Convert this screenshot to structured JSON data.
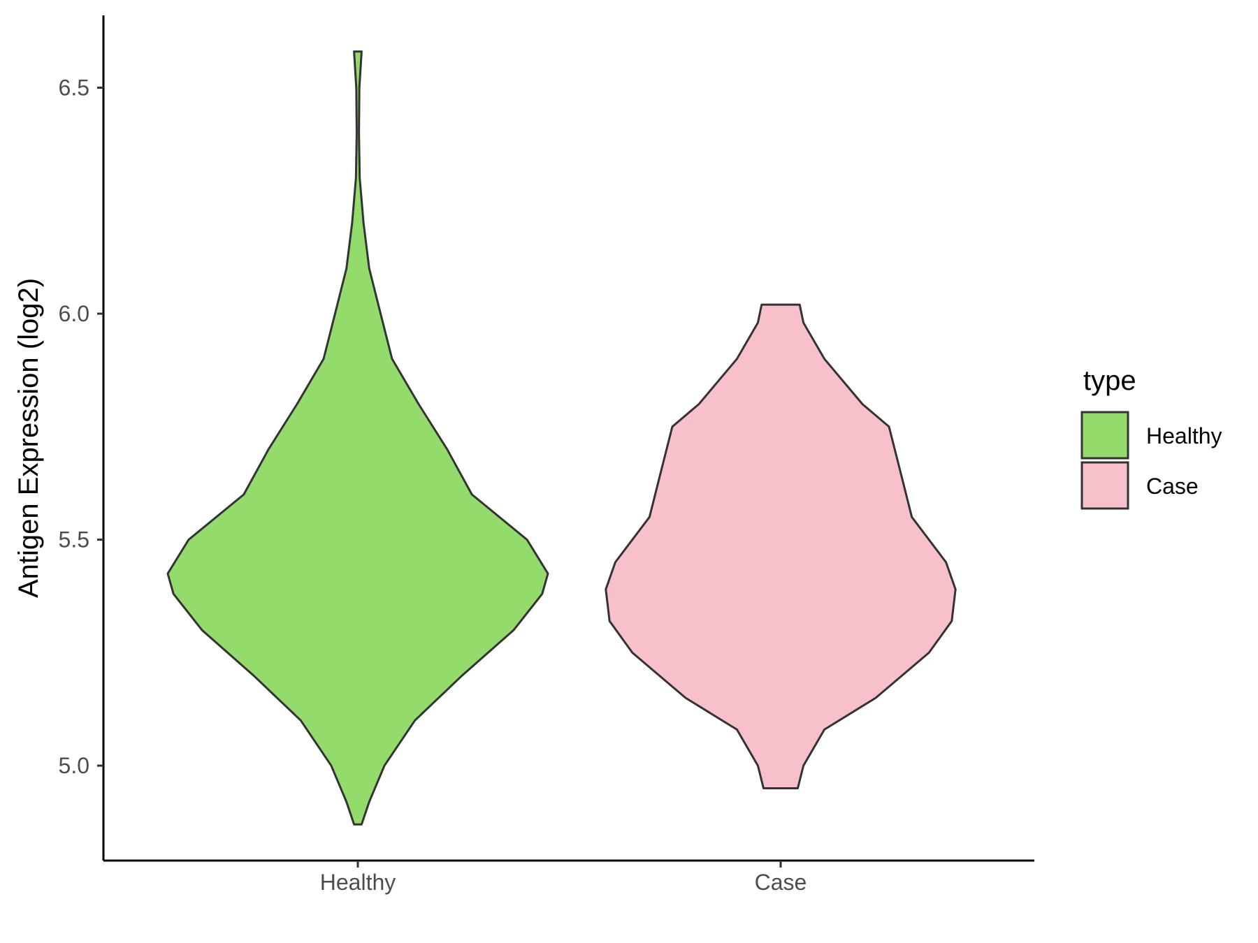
{
  "chart_data": {
    "type": "violin",
    "categories": [
      "Healthy",
      "Case"
    ],
    "ylabel": "Antigen Expression (log2)",
    "xlabel": "",
    "ylim": [
      4.79,
      6.66
    ],
    "yticks": [
      5.0,
      5.5,
      6.0,
      6.5
    ],
    "ytick_labels": [
      "5.0",
      "5.5",
      "6.0",
      "6.5"
    ],
    "grid": false,
    "legend": {
      "title": "type",
      "position": "right",
      "entries": [
        {
          "label": "Healthy",
          "color": "#93dc6b"
        },
        {
          "label": "Case",
          "color": "#f8c0cb"
        }
      ]
    },
    "series": [
      {
        "category": "Healthy",
        "color": "#93dc6b",
        "density_profile": [
          [
            4.87,
            0.02
          ],
          [
            4.92,
            0.06
          ],
          [
            5.0,
            0.14
          ],
          [
            5.1,
            0.3
          ],
          [
            5.2,
            0.55
          ],
          [
            5.3,
            0.82
          ],
          [
            5.38,
            0.97
          ],
          [
            5.425,
            1.0
          ],
          [
            5.5,
            0.89
          ],
          [
            5.6,
            0.6
          ],
          [
            5.7,
            0.47
          ],
          [
            5.8,
            0.32
          ],
          [
            5.9,
            0.18
          ],
          [
            6.0,
            0.12
          ],
          [
            6.1,
            0.06
          ],
          [
            6.2,
            0.03
          ],
          [
            6.3,
            0.01
          ],
          [
            6.4,
            0.006
          ],
          [
            6.5,
            0.008
          ],
          [
            6.58,
            0.02
          ]
        ]
      },
      {
        "category": "Case",
        "color": "#f8c0cb",
        "density_profile": [
          [
            4.95,
            0.09
          ],
          [
            5.0,
            0.12
          ],
          [
            5.08,
            0.23
          ],
          [
            5.15,
            0.5
          ],
          [
            5.25,
            0.78
          ],
          [
            5.32,
            0.9
          ],
          [
            5.39,
            0.92
          ],
          [
            5.45,
            0.87
          ],
          [
            5.55,
            0.69
          ],
          [
            5.65,
            0.63
          ],
          [
            5.75,
            0.57
          ],
          [
            5.8,
            0.43
          ],
          [
            5.9,
            0.23
          ],
          [
            5.98,
            0.12
          ],
          [
            6.02,
            0.1
          ]
        ]
      }
    ]
  }
}
